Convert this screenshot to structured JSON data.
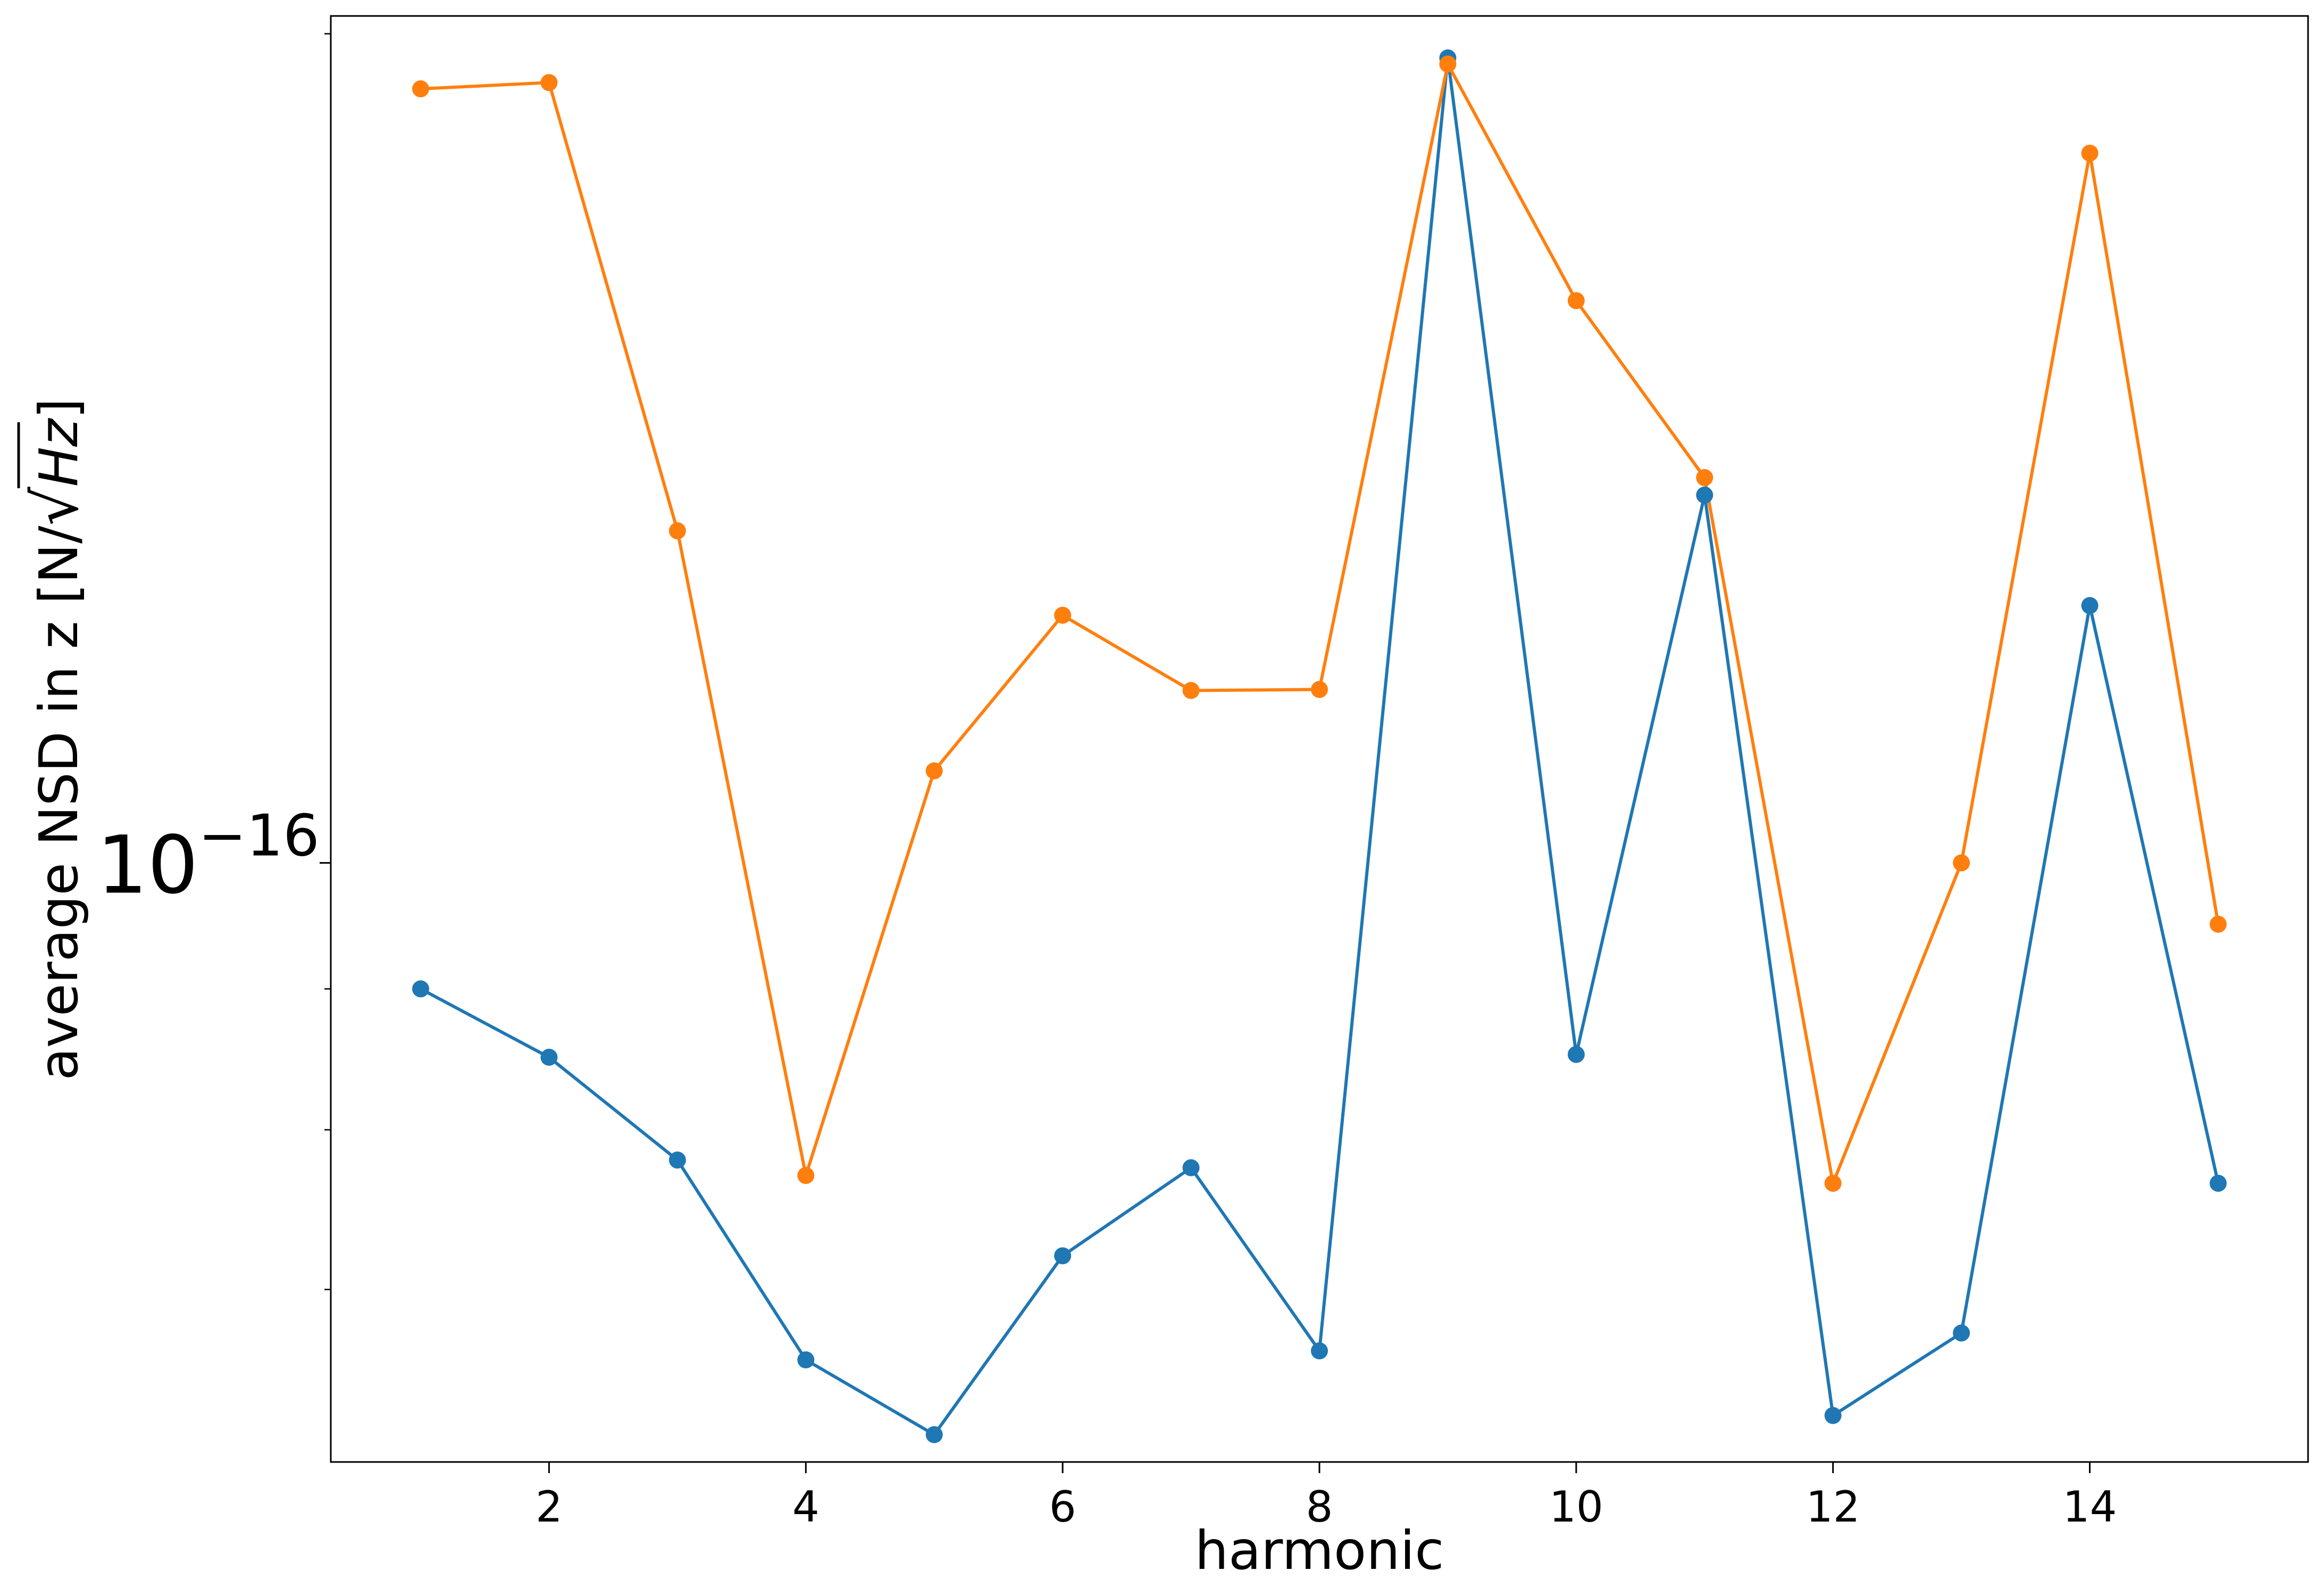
{
  "chart_data": {
    "type": "line",
    "xlabel": "harmonic",
    "ylabel": {
      "text": "average NSD in z [N/",
      "sqrt_arg": "Hz",
      "close": "]"
    },
    "yscale": "log",
    "x": [
      1,
      2,
      3,
      4,
      5,
      6,
      7,
      8,
      9,
      10,
      11,
      12,
      13,
      14,
      15
    ],
    "xlim": [
      0.3,
      15.7
    ],
    "ylim": [
      6.06e-17,
      2.03e-16
    ],
    "xticks": [
      2,
      4,
      6,
      8,
      10,
      12,
      14
    ],
    "xtick_labels": [
      "2",
      "4",
      "6",
      "8",
      "10",
      "12",
      "14"
    ],
    "yticks": [
      {
        "value": 1e-16,
        "base": "10",
        "exponent": "−16"
      }
    ],
    "minor_yticks": [
      7e-17,
      8e-17,
      9e-17,
      2e-16
    ],
    "grid": false,
    "series": [
      {
        "color": "#1f77b4",
        "values": [
          9e-17,
          8.5e-17,
          7.8e-17,
          6.6e-17,
          6.2e-17,
          7.2e-17,
          7.75e-17,
          6.65e-17,
          1.96e-16,
          8.52e-17,
          1.36e-16,
          6.3e-17,
          6.75e-17,
          1.24e-16,
          7.65e-17
        ]
      },
      {
        "color": "#ff7f0e",
        "values": [
          1.91e-16,
          1.92e-16,
          1.32e-16,
          7.7e-17,
          1.08e-16,
          1.23e-16,
          1.155e-16,
          1.156e-16,
          1.95e-16,
          1.6e-16,
          1.38e-16,
          7.65e-17,
          1e-16,
          1.81e-16,
          9.5e-17
        ]
      }
    ]
  }
}
